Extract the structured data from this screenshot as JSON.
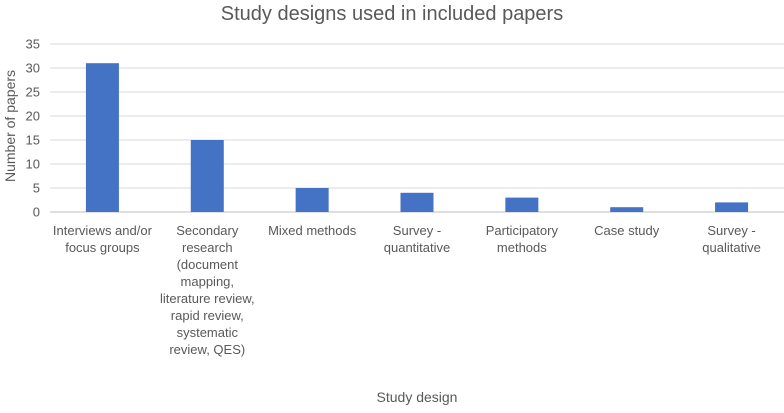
{
  "chart_data": {
    "type": "bar",
    "title": "Study designs used in included papers",
    "xlabel": "Study design",
    "ylabel": "Number of papers",
    "ylim": [
      0,
      35
    ],
    "yticks": [
      0,
      5,
      10,
      15,
      20,
      25,
      30,
      35
    ],
    "grid": true,
    "legend": "none",
    "bar_color": "#4472C4",
    "categories": [
      "Interviews and/or focus groups",
      "Secondary research (document mapping, literature review, rapid review, systematic review, QES)",
      "Mixed methods",
      "Survey - quantitative",
      "Participatory methods",
      "Case study",
      "Survey - qualitative"
    ],
    "values": [
      31,
      15,
      5,
      4,
      3,
      1,
      2
    ]
  }
}
